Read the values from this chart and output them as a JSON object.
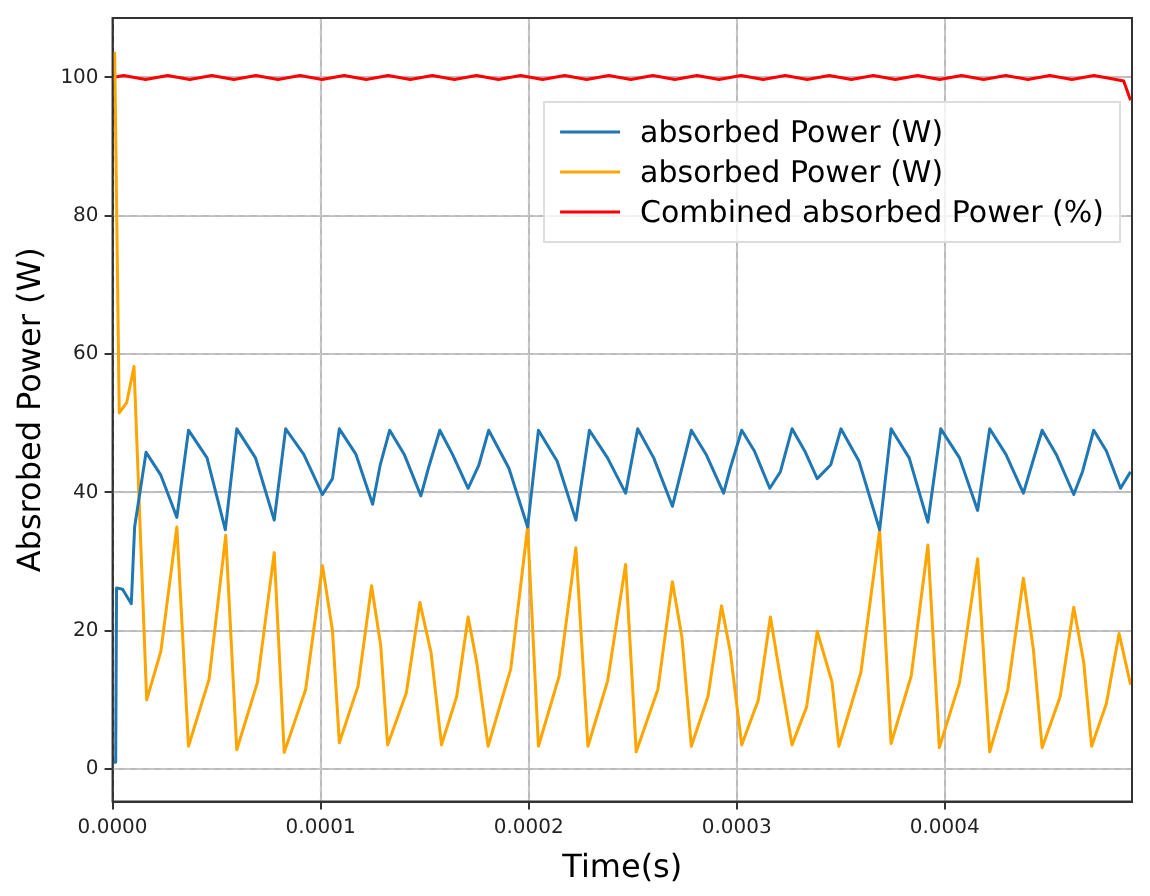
{
  "chart_data": {
    "type": "line",
    "xlabel": "Time(s)",
    "ylabel": "Absrobed Power (W)",
    "xlim": [
      0,
      0.00049
    ],
    "ylim": [
      -4.7,
      108.6
    ],
    "xticks": [
      {
        "value": 0,
        "label": "0.0000"
      },
      0.0001,
      0.0002,
      0.0003,
      0.0004
    ],
    "yticks": [
      0,
      20,
      40,
      60,
      80,
      100
    ],
    "grid": true,
    "legend": "top right",
    "series": [
      {
        "name": "absorbed Power (W)",
        "color": "#1f77b4",
        "x": [
          0,
          1.5e-06,
          1.9e-06,
          4.8e-06,
          9e-06,
          1.06e-05,
          1.61e-05,
          2.32e-05,
          3.09e-05,
          3.65e-05,
          4.54e-05,
          5.42e-05,
          5.97e-05,
          6.87e-05,
          7.77e-05,
          8.32e-05,
          9.19e-05,
          0.0001009,
          0.0001057,
          0.000109,
          0.000117,
          0.000125,
          0.0001286,
          0.0001332,
          0.0001402,
          0.0001482,
          0.0001518,
          0.0001573,
          0.0001634,
          0.0001709,
          0.000176,
          0.0001808,
          0.0001905,
          0.0001995,
          0.0002047,
          0.0002137,
          0.0002227,
          0.0002292,
          0.0002379,
          0.0002466,
          0.0002524,
          0.0002601,
          0.0002691,
          0.0002782,
          0.0002853,
          0.0002937,
          0.0002969,
          0.0003024,
          0.0003085,
          0.0003159,
          0.000321,
          0.0003266,
          0.0003327,
          0.0003387,
          0.0003452,
          0.0003501,
          0.0003588,
          0.0003687,
          0.0003742,
          0.0003829,
          0.0003919,
          0.0003981,
          0.0004071,
          0.0004158,
          0.0004216,
          0.0004294,
          0.0004378,
          0.0004468,
          0.0004536,
          0.000462,
          0.0004662,
          0.0004716,
          0.0004777,
          0.0004845,
          0.0004893
        ],
        "values": [
          1,
          1,
          26.2,
          26,
          23.9,
          35,
          45.8,
          42.5,
          36.4,
          49,
          45,
          34.6,
          49.2,
          45,
          36,
          49.2,
          45.5,
          39.7,
          42,
          49.2,
          45.5,
          38.3,
          43.9,
          49,
          45.5,
          39.5,
          43.5,
          49,
          45.5,
          40.6,
          43.9,
          49,
          43.5,
          35,
          49,
          44.5,
          36,
          49,
          45,
          39.9,
          49.2,
          45,
          38,
          49,
          45.5,
          39.9,
          43.5,
          49,
          46,
          40.6,
          43,
          49.2,
          46,
          42,
          44,
          49.2,
          44.5,
          34.6,
          49.2,
          45,
          35.7,
          49.2,
          45,
          37.4,
          49.2,
          45.5,
          39.9,
          49,
          45.5,
          39.7,
          43,
          49,
          46,
          40.6,
          43
        ]
      },
      {
        "name": "absorbed Power (W)",
        "color": "#ffa500",
        "x": [
          1e-06,
          3.2e-06,
          6.8e-06,
          1.03e-05,
          1.64e-05,
          2.32e-05,
          3.09e-05,
          3.65e-05,
          4.64e-05,
          5.44e-05,
          5.97e-05,
          6.96e-05,
          7.77e-05,
          8.25e-05,
          9.28e-05,
          0.0001009,
          0.0001057,
          0.000109,
          0.000118,
          0.0001245,
          0.0001289,
          0.0001322,
          0.0001412,
          0.0001477,
          0.0001531,
          0.0001581,
          0.0001654,
          0.0001709,
          0.000175,
          0.0001805,
          0.0001914,
          0.0001995,
          0.0002047,
          0.0002147,
          0.0002227,
          0.0002285,
          0.000238,
          0.0002466,
          0.0002517,
          0.0002621,
          0.0002691,
          0.0002737,
          0.0002782,
          0.0002862,
          0.0002927,
          0.0002969,
          0.0003024,
          0.0003104,
          0.0003162,
          0.0003208,
          0.0003266,
          0.0003336,
          0.0003387,
          0.0003458,
          0.0003491,
          0.0003597,
          0.0003687,
          0.0003742,
          0.0003839,
          0.0003919,
          0.0003974,
          0.0004071,
          0.0004158,
          0.0004216,
          0.0004303,
          0.0004378,
          0.0004426,
          0.0004468,
          0.0004555,
          0.000462,
          0.0004668,
          0.0004706,
          0.0004777,
          0.0004838,
          0.0004893
        ],
        "values": [
          103.7,
          51.5,
          53,
          58.2,
          10,
          17,
          35,
          3.3,
          13,
          33.8,
          2.8,
          12.5,
          31.3,
          2.4,
          11.5,
          29.4,
          20,
          3.8,
          12,
          26.5,
          17.8,
          3.5,
          11,
          24.1,
          16.8,
          3.5,
          10.5,
          22,
          15.5,
          3.3,
          14.5,
          35,
          3.3,
          13.5,
          32,
          3.3,
          12.8,
          29.6,
          2.5,
          11.5,
          27.1,
          19,
          3.3,
          10.5,
          23.6,
          17,
          3.5,
          10,
          22,
          13.6,
          3.5,
          9,
          19.9,
          12.6,
          3.3,
          14,
          34.6,
          3.7,
          13.5,
          32.4,
          3.1,
          12.5,
          30.4,
          2.5,
          11.5,
          27.6,
          17.3,
          3.1,
          10.5,
          23.4,
          15.4,
          3.3,
          9.5,
          19.6,
          12.2
        ]
      },
      {
        "name": "Combined absorbed Power (%)",
        "color": "#ff0000",
        "x": [
          0,
          5.3e-06,
          1.59e-05,
          2.65e-05,
          3.71e-05,
          4.77e-05,
          5.83e-05,
          6.89e-05,
          7.95e-05,
          9.01e-05,
          0.0001007,
          0.0001113,
          0.0001219,
          0.0001325,
          0.0001431,
          0.0001537,
          0.0001643,
          0.0001749,
          0.0001855,
          0.0001961,
          0.0002067,
          0.0002173,
          0.0002279,
          0.0002385,
          0.0002491,
          0.0002597,
          0.0002703,
          0.0002809,
          0.0002915,
          0.0003021,
          0.0003127,
          0.0003233,
          0.0003339,
          0.0003445,
          0.0003551,
          0.0003657,
          0.0003763,
          0.0003869,
          0.0003975,
          0.0004081,
          0.0004187,
          0.0004293,
          0.0004399,
          0.0004505,
          0.0004611,
          0.0004717,
          0.0004823,
          0.000486,
          0.0004893
        ],
        "values": [
          100,
          100.3,
          99.7,
          100.3,
          99.7,
          100.3,
          99.7,
          100.3,
          99.7,
          100.3,
          99.7,
          100.3,
          99.7,
          100.3,
          99.7,
          100.3,
          99.7,
          100.3,
          99.7,
          100.3,
          99.7,
          100.3,
          99.7,
          100.3,
          99.7,
          100.3,
          99.7,
          100.3,
          99.7,
          100.3,
          99.7,
          100.3,
          99.7,
          100.3,
          99.7,
          100.3,
          99.7,
          100.3,
          99.7,
          100.3,
          99.7,
          100.3,
          99.7,
          100.3,
          99.7,
          100.3,
          99.7,
          99.5,
          96.7
        ]
      }
    ]
  }
}
